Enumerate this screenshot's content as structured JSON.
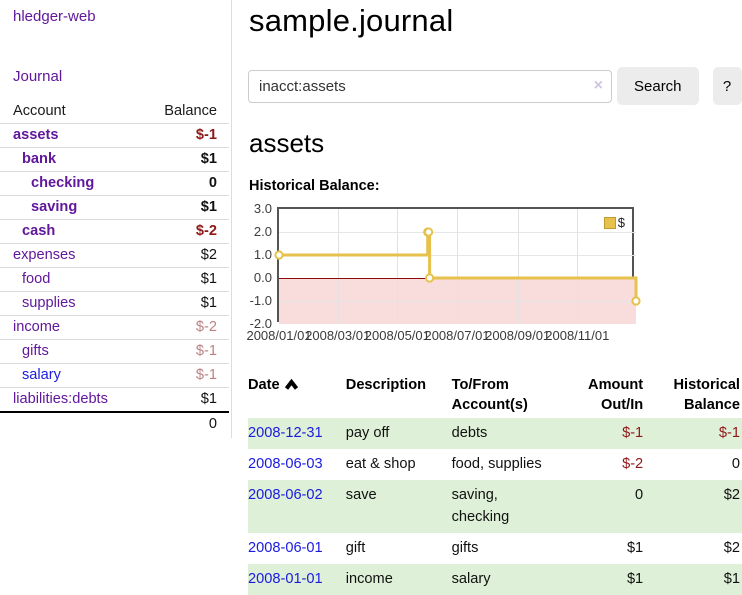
{
  "app": {
    "brand": "hledger-web"
  },
  "sidebar": {
    "journal_link": "Journal",
    "accounts": {
      "account_header": "Account",
      "balance_header": "Balance",
      "rows": [
        {
          "name": "assets",
          "balance": "$-1",
          "depth": 1,
          "bold": true,
          "neg": "strong",
          "link_color": "purple"
        },
        {
          "name": "bank",
          "balance": "$1",
          "depth": 2,
          "bold": true,
          "neg": "",
          "link_color": "purple"
        },
        {
          "name": "checking",
          "balance": "0",
          "depth": 3,
          "bold": true,
          "neg": "",
          "link_color": "purple"
        },
        {
          "name": "saving",
          "balance": "$1",
          "depth": 3,
          "bold": true,
          "neg": "",
          "link_color": "purple"
        },
        {
          "name": "cash",
          "balance": "$-2",
          "depth": 2,
          "bold": true,
          "neg": "strong",
          "link_color": "purple"
        },
        {
          "name": "expenses",
          "balance": "$2",
          "depth": 1,
          "bold": false,
          "neg": "",
          "link_color": "purple"
        },
        {
          "name": "food",
          "balance": "$1",
          "depth": 2,
          "bold": false,
          "neg": "",
          "link_color": "purple"
        },
        {
          "name": "supplies",
          "balance": "$1",
          "depth": 2,
          "bold": false,
          "neg": "",
          "link_color": "purple"
        },
        {
          "name": "income",
          "balance": "$-2",
          "depth": 1,
          "bold": false,
          "neg": "muted",
          "link_color": "purple"
        },
        {
          "name": "gifts",
          "balance": "$-1",
          "depth": 2,
          "bold": false,
          "neg": "muted",
          "link_color": "purple"
        },
        {
          "name": "salary",
          "balance": "$-1",
          "depth": 2,
          "bold": false,
          "neg": "muted",
          "link_color": "blue"
        },
        {
          "name": "liabilities:debts",
          "balance": "$1",
          "depth": 1,
          "bold": false,
          "neg": "",
          "link_color": "purple"
        }
      ],
      "total": "0"
    }
  },
  "main": {
    "title": "sample.journal",
    "search": {
      "value": "inacct:assets",
      "clear_icon": "×",
      "search_button": "Search",
      "help_button": "?"
    },
    "section_title": "assets",
    "chart_label": "Historical Balance:"
  },
  "chart_data": {
    "type": "line",
    "step": true,
    "title": "Historical Balance",
    "series": [
      {
        "name": "$",
        "color": "#e6c14c",
        "points": [
          [
            "2008-01-01",
            1
          ],
          [
            "2008-06-01",
            2
          ],
          [
            "2008-06-02",
            2
          ],
          [
            "2008-06-03",
            0
          ],
          [
            "2008-12-31",
            -1
          ]
        ]
      }
    ],
    "ylim": [
      -2,
      3
    ],
    "yticks": [
      3.0,
      2.0,
      1.0,
      0.0,
      -1.0,
      -2.0
    ],
    "xticks": [
      "2008/01/01",
      "2008/03/01",
      "2008/05/01",
      "2008/07/01",
      "2008/09/01",
      "2008/11/01"
    ],
    "grid": true,
    "legend_position": "top-right",
    "negative_region_color": "#f9dcdc",
    "zero_line_color": "#8b0909"
  },
  "register": {
    "headers": {
      "date": "Date",
      "description": "Description",
      "accounts": "To/From Account(s)",
      "amount": "Amount Out/In",
      "balance": "Historical Balance"
    },
    "sort_icon": "caret-up",
    "rows": [
      {
        "date": "2008-12-31",
        "description": "pay off",
        "accounts": "debts",
        "amount": "$-1",
        "amount_neg": true,
        "balance": "$-1",
        "balance_neg": true,
        "striped": true
      },
      {
        "date": "2008-06-03",
        "description": "eat & shop",
        "accounts": "food, supplies",
        "amount": "$-2",
        "amount_neg": true,
        "balance": "0",
        "balance_neg": false,
        "striped": false
      },
      {
        "date": "2008-06-02",
        "description": "save",
        "accounts": "saving, checking",
        "amount": "0",
        "amount_neg": false,
        "balance": "$2",
        "balance_neg": false,
        "striped": true
      },
      {
        "date": "2008-06-01",
        "description": "gift",
        "accounts": "gifts",
        "amount": "$1",
        "amount_neg": false,
        "balance": "$2",
        "balance_neg": false,
        "striped": false
      },
      {
        "date": "2008-01-01",
        "description": "income",
        "accounts": "salary",
        "amount": "$1",
        "amount_neg": false,
        "balance": "$1",
        "balance_neg": false,
        "striped": true
      }
    ]
  }
}
